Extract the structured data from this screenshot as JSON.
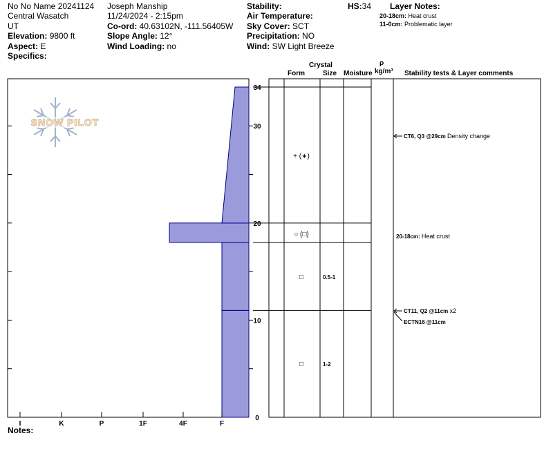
{
  "header": {
    "profile_name": "No No Name 20241124",
    "range": "Central Wasatch",
    "state": "UT",
    "elevation_label": "Elevation:",
    "elevation_value": "9800 ft",
    "aspect_label": "Aspect:",
    "aspect_value": "E",
    "specifics_label": "Specifics:",
    "observer": "Joseph Manship",
    "datetime": "11/24/2024 - 2:15pm",
    "coord_label": "Co-ord:",
    "coord_value": "40.63102N, -111.56405W",
    "slope_label": "Slope Angle:",
    "slope_value": "12°",
    "wind_loading_label": "Wind Loading:",
    "wind_loading_value": "no",
    "stability_label": "Stability:",
    "air_temp_label": "Air Temperature:",
    "sky_cover_label": "Sky Cover:",
    "sky_cover_value": "SCT",
    "precip_label": "Precipitation:",
    "precip_value": "NO",
    "wind_label": "Wind:",
    "wind_value": "SW Light Breeze",
    "hs_label": "HS:",
    "hs_value": "34",
    "layer_notes_label": "Layer Notes:",
    "layer_notes": [
      {
        "range": "20-18cm:",
        "text": "Heat crust"
      },
      {
        "range": "11-0cm:",
        "text": "Problematic layer"
      }
    ]
  },
  "logo_text": "SNOW PILOT",
  "notes_label": "Notes:",
  "columns": {
    "crystal": "Crystal",
    "form": "Form",
    "size": "Size",
    "moisture": "Moisture",
    "rho": "ρ",
    "density_unit": "kg/m³",
    "comments": "Stability tests & Layer comments"
  },
  "chart_data": {
    "type": "bar",
    "title": "",
    "x_ticks": [
      "I",
      "K",
      "P",
      "1F",
      "4F",
      "F"
    ],
    "y_ticks": [
      "34",
      "30",
      "20",
      "10",
      "0"
    ],
    "ylim": [
      0,
      34
    ],
    "hand_hardness_profile": [
      {
        "bottom": 0,
        "top": 11,
        "hardness": "F"
      },
      {
        "bottom": 11,
        "top": 18,
        "hardness": "F"
      },
      {
        "bottom": 18,
        "top": 20,
        "hardness": "4F+"
      },
      {
        "bottom": 20,
        "top": 34,
        "hardness": "F (F- at 20 to F+ at 34)"
      }
    ],
    "layers": [
      {
        "top": 34,
        "bottom": 20,
        "form": "+ (∗)",
        "size": ""
      },
      {
        "top": 20,
        "bottom": 18,
        "form": "○ (□)",
        "size": ""
      },
      {
        "top": 18,
        "bottom": 11,
        "form": "□",
        "size": "0.5-1"
      },
      {
        "top": 11,
        "bottom": 0,
        "form": "□",
        "size": "1-2"
      }
    ],
    "stability_tests": [
      {
        "depth": 29,
        "code": "CT6, Q3 @29cm",
        "comment": "Density change"
      },
      {
        "depth": 11,
        "code": "CT11, Q2 @11cm",
        "comment": "x2"
      },
      {
        "depth": 11,
        "code": "ECTN16 @11cm",
        "comment": ""
      }
    ],
    "layer_comments": [
      {
        "depth": 19,
        "range": "20-18cm:",
        "text": "Heat crust"
      }
    ]
  },
  "colors": {
    "fill": "#9b9bdb",
    "stroke": "#00008b",
    "logo": "#8fa6c4"
  }
}
